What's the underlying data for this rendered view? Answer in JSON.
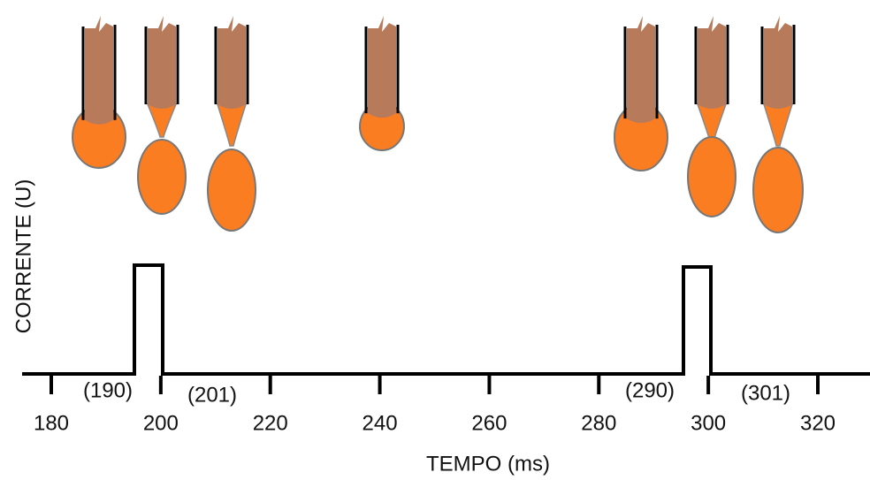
{
  "y_axis_label": "CORRENTE (U)",
  "x_axis_label": "TEMPO (ms)",
  "x_ticks": [
    180,
    200,
    220,
    240,
    260,
    280,
    300,
    320
  ],
  "annotations": [
    "(190)",
    "(201)",
    "(290)",
    "(301)"
  ]
}
